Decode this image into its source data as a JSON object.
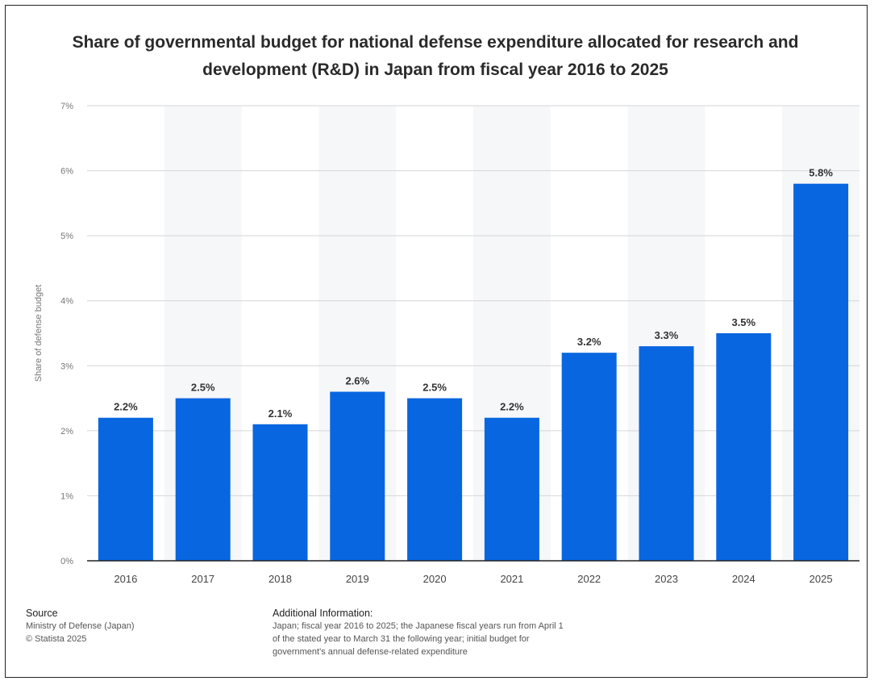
{
  "title": "Share of governmental budget for national defense expenditure allocated for research and development (R&D) in Japan from fiscal year 2016 to 2025",
  "chart_data": {
    "type": "bar",
    "title": "Share of governmental budget for national defense expenditure allocated for research and development (R&D) in Japan from fiscal year 2016 to 2025",
    "xlabel": "",
    "ylabel": "Share of defense budget",
    "categories": [
      "2016",
      "2017",
      "2018",
      "2019",
      "2020",
      "2021",
      "2022",
      "2023",
      "2024",
      "2025"
    ],
    "values": [
      2.2,
      2.5,
      2.1,
      2.6,
      2.5,
      2.2,
      3.2,
      3.3,
      3.5,
      5.8
    ],
    "data_labels": [
      "2.2%",
      "2.5%",
      "2.1%",
      "2.6%",
      "2.5%",
      "2.2%",
      "3.2%",
      "3.3%",
      "3.5%",
      "5.8%"
    ],
    "ylim": [
      0,
      7
    ],
    "yticks": [
      "0%",
      "1%",
      "2%",
      "3%",
      "4%",
      "5%",
      "6%",
      "7%"
    ],
    "grid": true,
    "bar_color": "#0866e0"
  },
  "footer": {
    "source_heading": "Source",
    "source_lines": [
      "Ministry of Defense (Japan)",
      "© Statista 2025"
    ],
    "info_heading": "Additional Information:",
    "info_lines": [
      "Japan; fiscal year 2016 to 2025; the Japanese fiscal years run from April 1",
      "of the stated year to March 31 the following year; initial budget for",
      "government's annual defense-related expenditure"
    ]
  }
}
